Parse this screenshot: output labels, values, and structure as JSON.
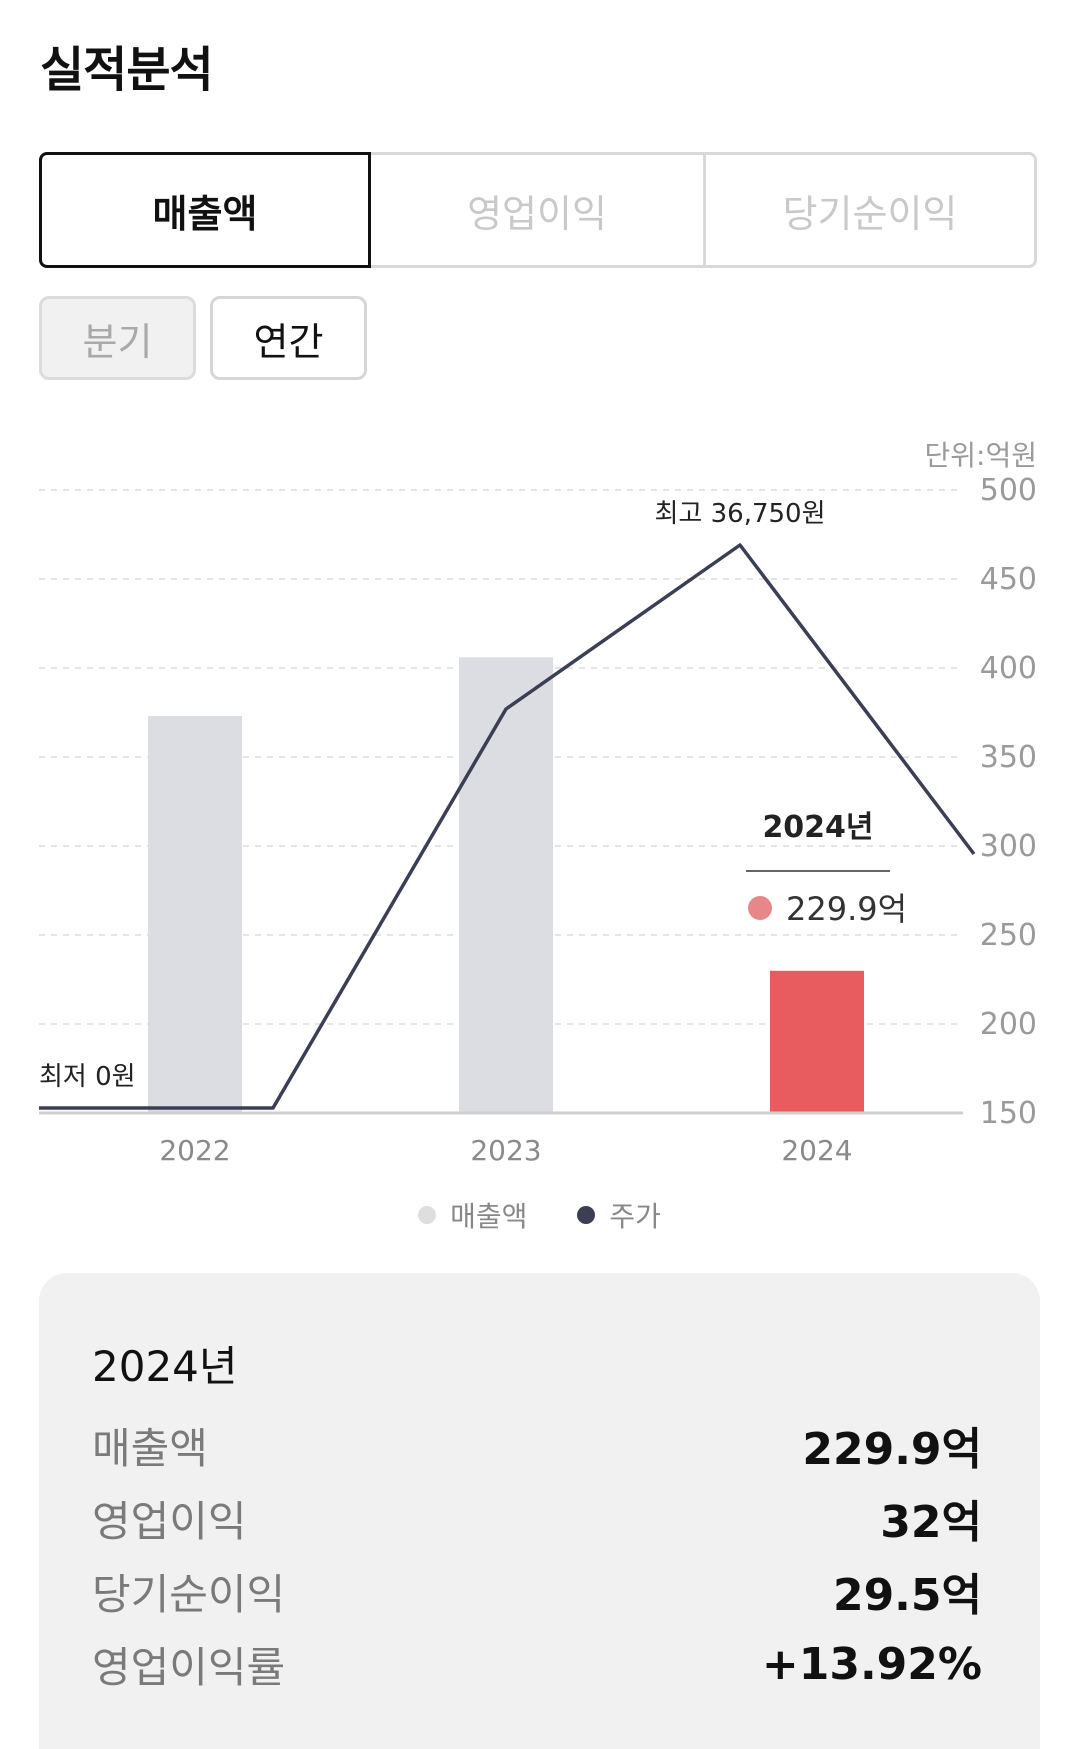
{
  "title": "실적분석",
  "tabs": [
    "매출액",
    "영업이익",
    "당기순이익"
  ],
  "periods": [
    "분기",
    "연간"
  ],
  "unit_label": "단위:억원",
  "chart_data": {
    "type": "bar",
    "categories": [
      "2022",
      "2023",
      "2024"
    ],
    "series": [
      {
        "name": "매출액",
        "values": [
          373,
          406,
          229.9
        ],
        "colors": [
          "#dcdde2",
          "#dcdde2",
          "#e85c60"
        ]
      },
      {
        "name": "주가",
        "color": "#3a3f55"
      }
    ],
    "ylim": [
      150,
      500
    ],
    "yticks": [
      500,
      450,
      400,
      350,
      300,
      250,
      200,
      150
    ],
    "max_label": "최고 36,750원",
    "min_label": "최저 0원",
    "tooltip": {
      "year": "2024년",
      "value": "229.9억",
      "dot_color": "#e8878a"
    }
  },
  "legend": [
    {
      "label": "매출액",
      "color": "#dedede"
    },
    {
      "label": "주가",
      "color": "#3a3f55"
    }
  ],
  "summary": {
    "year": "2024년",
    "rows": [
      {
        "label": "매출액",
        "value": "229.9억"
      },
      {
        "label": "영업이익",
        "value": "32억"
      },
      {
        "label": "당기순이익",
        "value": "29.5억"
      },
      {
        "label": "영업이익률",
        "value": "+13.92%"
      }
    ]
  }
}
